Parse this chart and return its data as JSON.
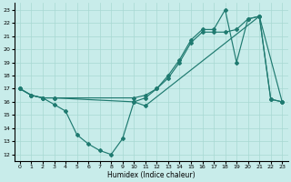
{
  "xlabel": "Humidex (Indice chaleur)",
  "xlim": [
    -0.5,
    23.5
  ],
  "ylim": [
    11.5,
    23.5
  ],
  "yticks": [
    12,
    13,
    14,
    15,
    16,
    17,
    18,
    19,
    20,
    21,
    22,
    23
  ],
  "xticks": [
    0,
    1,
    2,
    3,
    4,
    5,
    6,
    7,
    8,
    9,
    10,
    11,
    12,
    13,
    14,
    15,
    16,
    17,
    18,
    19,
    20,
    21,
    22,
    23
  ],
  "line_color": "#1f7a70",
  "bg_color": "#c8ecea",
  "grid_color": "#a8d8d2",
  "line1_x": [
    0,
    1,
    2,
    3,
    10,
    11,
    12,
    13,
    14,
    15,
    16,
    17,
    18,
    19,
    20,
    21,
    22,
    23
  ],
  "line1_y": [
    17.0,
    16.5,
    16.3,
    16.3,
    16.3,
    16.5,
    17.0,
    17.8,
    19.0,
    20.5,
    21.3,
    21.3,
    21.3,
    21.5,
    22.3,
    22.5,
    16.2,
    16.0
  ],
  "line2_x": [
    0,
    1,
    2,
    3,
    10,
    11,
    12,
    13,
    14,
    15,
    16,
    17,
    18,
    19,
    20,
    21,
    23
  ],
  "line2_y": [
    17.0,
    16.5,
    16.3,
    16.3,
    16.0,
    16.3,
    17.0,
    18.0,
    19.2,
    20.7,
    21.5,
    21.5,
    23.0,
    19.0,
    22.3,
    22.5,
    16.0
  ],
  "line3_x": [
    0,
    1,
    2,
    3,
    4,
    5,
    6,
    7,
    8,
    9,
    10,
    11,
    21,
    22,
    23
  ],
  "line3_y": [
    17.0,
    16.5,
    16.3,
    15.8,
    15.3,
    13.5,
    12.8,
    12.3,
    12.0,
    13.2,
    16.0,
    15.7,
    22.5,
    16.2,
    16.0
  ]
}
